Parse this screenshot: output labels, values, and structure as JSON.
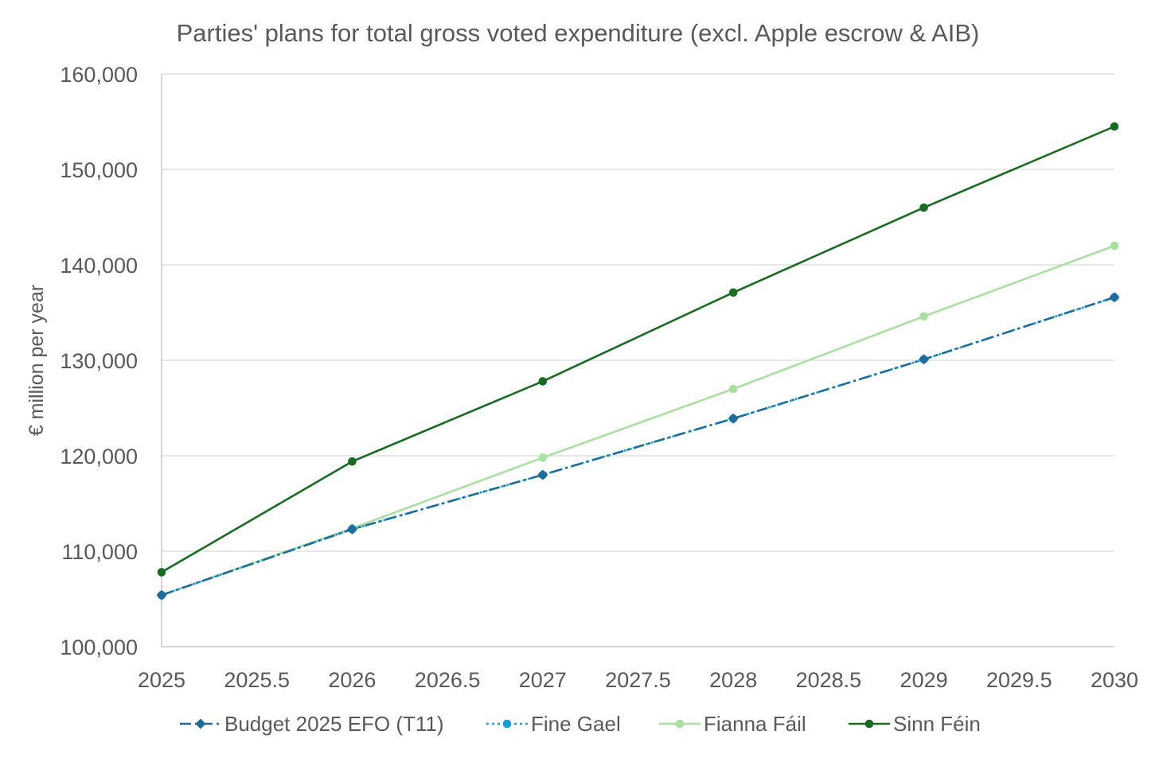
{
  "chart_data": {
    "type": "line",
    "title": "Parties' plans for total gross voted expenditure (excl. Apple escrow & AIB)",
    "xlabel": "",
    "ylabel": "€ million per year",
    "xlim": [
      2025,
      2030
    ],
    "ylim": [
      100000,
      160000
    ],
    "x_ticks": [
      2025,
      2025.5,
      2026,
      2026.5,
      2027,
      2027.5,
      2028,
      2028.5,
      2029,
      2029.5,
      2030
    ],
    "x_tick_labels": [
      "2025",
      "2025.5",
      "2026",
      "2026.5",
      "2027",
      "2027.5",
      "2028",
      "2028.5",
      "2029",
      "2029.5",
      "2030"
    ],
    "y_ticks": [
      100000,
      110000,
      120000,
      130000,
      140000,
      150000,
      160000
    ],
    "y_tick_labels": [
      "100,000",
      "110,000",
      "120,000",
      "130,000",
      "140,000",
      "150,000",
      "160,000"
    ],
    "grid": true,
    "legend_position": "bottom",
    "x": [
      2025,
      2026,
      2027,
      2028,
      2029,
      2030
    ],
    "series": [
      {
        "name": "Budget 2025 EFO (T11)",
        "color": "#1f6b99",
        "dash": "dash-dot",
        "marker": "diamond",
        "values": [
          105400,
          112300,
          118000,
          123900,
          130100,
          136600
        ]
      },
      {
        "name": "Fine Gael",
        "color": "#1a9ed9",
        "dash": "dotted",
        "marker": "circle",
        "values": [
          105400,
          112300,
          118000,
          123900,
          130100,
          136600
        ]
      },
      {
        "name": "Fianna Fáil",
        "color": "#a9dfa0",
        "dash": "solid",
        "marker": "circle",
        "values": [
          105400,
          112400,
          119800,
          127000,
          134600,
          142000
        ]
      },
      {
        "name": "Sinn Féin",
        "color": "#1a6b22",
        "dash": "solid",
        "marker": "circle",
        "values": [
          107800,
          119400,
          127800,
          137100,
          146000,
          154500
        ]
      }
    ]
  }
}
